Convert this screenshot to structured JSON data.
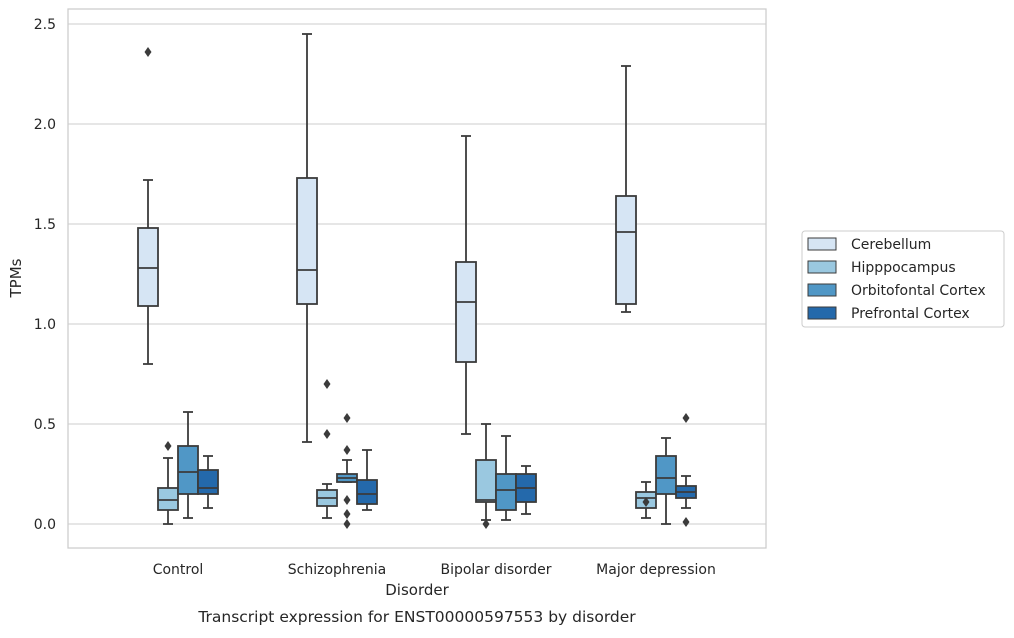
{
  "chart_data": {
    "type": "box",
    "title": "",
    "caption": "Transcript expression for ENST00000597553 by disorder",
    "xlabel": "Disorder",
    "ylabel": "TPMs",
    "ylim": [
      -0.12,
      2.57
    ],
    "yticks": [
      "0.0",
      "0.5",
      "1.0",
      "1.5",
      "2.0",
      "2.5"
    ],
    "ytick_values": [
      0,
      0.5,
      1.0,
      1.5,
      2.0,
      2.5
    ],
    "grid": "horizontal",
    "legend_position": "right",
    "categories": [
      "Control",
      "Schizophrenia",
      "Bipolar disorder",
      "Major depression"
    ],
    "series": [
      {
        "name": "Cerebellum",
        "color": "#d6e5f4",
        "boxes": [
          {
            "whislo": 0.8,
            "q1": 1.09,
            "med": 1.28,
            "q3": 1.48,
            "whishi": 1.72,
            "fliers": [
              2.36
            ]
          },
          {
            "whislo": 0.41,
            "q1": 1.1,
            "med": 1.27,
            "q3": 1.73,
            "whishi": 2.45,
            "fliers": []
          },
          {
            "whislo": 0.45,
            "q1": 0.81,
            "med": 1.11,
            "q3": 1.31,
            "whishi": 1.94,
            "fliers": []
          },
          {
            "whislo": 1.06,
            "q1": 1.1,
            "med": 1.46,
            "q3": 1.64,
            "whishi": 2.29,
            "fliers": []
          }
        ]
      },
      {
        "name": "Hipppocampus",
        "color": "#9ac8e0",
        "boxes": [
          {
            "whislo": 0.0,
            "q1": 0.07,
            "med": 0.12,
            "q3": 0.18,
            "whishi": 0.33,
            "fliers": [
              0.39
            ]
          },
          {
            "whislo": 0.03,
            "q1": 0.09,
            "med": 0.13,
            "q3": 0.17,
            "whishi": 0.2,
            "fliers": [
              0.7,
              0.45
            ]
          },
          {
            "whislo": 0.02,
            "q1": 0.11,
            "med": 0.12,
            "q3": 0.32,
            "whishi": 0.5,
            "fliers": [
              0.0
            ]
          },
          {
            "whislo": 0.03,
            "q1": 0.08,
            "med": 0.13,
            "q3": 0.16,
            "whishi": 0.21,
            "fliers": [
              0.11
            ]
          }
        ]
      },
      {
        "name": "Orbitofontal Cortex",
        "color": "#5097c6",
        "boxes": [
          {
            "whislo": 0.03,
            "q1": 0.15,
            "med": 0.26,
            "q3": 0.39,
            "whishi": 0.56,
            "fliers": []
          },
          {
            "whislo": 0.21,
            "q1": 0.21,
            "med": 0.23,
            "q3": 0.25,
            "whishi": 0.32,
            "fliers": [
              0.53,
              0.37,
              0.12,
              0.05,
              0.0
            ]
          },
          {
            "whislo": 0.02,
            "q1": 0.07,
            "med": 0.17,
            "q3": 0.25,
            "whishi": 0.44,
            "fliers": []
          },
          {
            "whislo": 0.0,
            "q1": 0.15,
            "med": 0.23,
            "q3": 0.34,
            "whishi": 0.43,
            "fliers": []
          }
        ]
      },
      {
        "name": "Prefrontal Cortex",
        "color": "#2469ab",
        "boxes": [
          {
            "whislo": 0.08,
            "q1": 0.15,
            "med": 0.18,
            "q3": 0.27,
            "whishi": 0.34,
            "fliers": []
          },
          {
            "whislo": 0.07,
            "q1": 0.1,
            "med": 0.15,
            "q3": 0.22,
            "whishi": 0.37,
            "fliers": []
          },
          {
            "whislo": 0.05,
            "q1": 0.11,
            "med": 0.18,
            "q3": 0.25,
            "whishi": 0.29,
            "fliers": []
          },
          {
            "whislo": 0.08,
            "q1": 0.13,
            "med": 0.16,
            "q3": 0.19,
            "whishi": 0.24,
            "fliers": [
              0.53,
              0.01
            ]
          }
        ]
      }
    ]
  }
}
